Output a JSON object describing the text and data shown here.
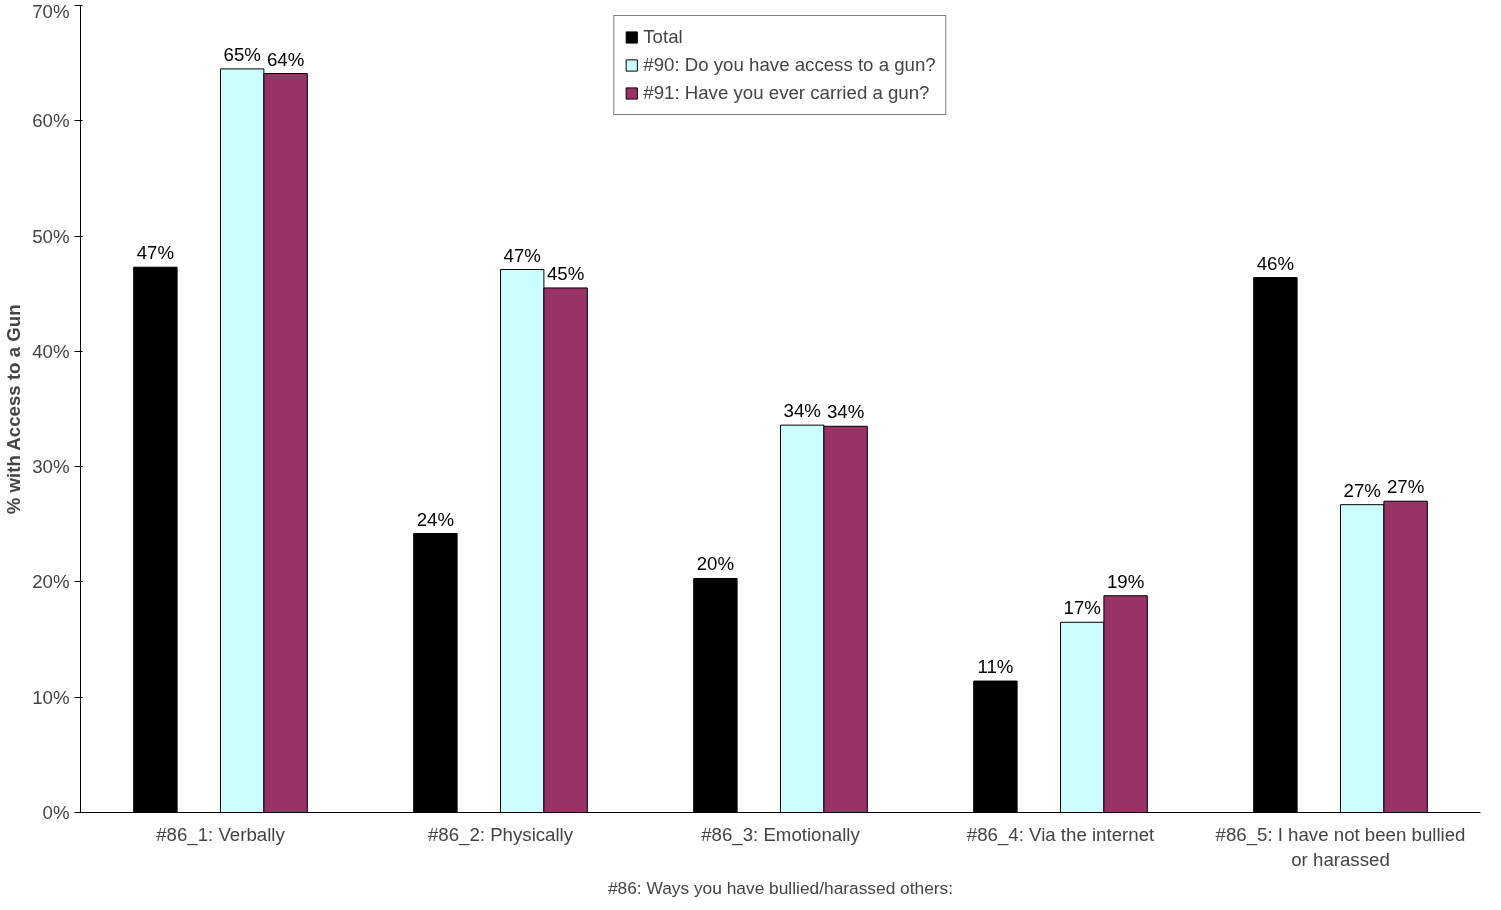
{
  "chart_data": {
    "type": "bar",
    "categories": [
      "#86_1: Verbally",
      "#86_2: Physically",
      "#86_3: Emotionally",
      "#86_4: Via the internet",
      "#86_5: I have not been bullied or harassed"
    ],
    "series": [
      {
        "name": "Total",
        "color": "#000000",
        "values": [
          47.3,
          24.2,
          20.3,
          11.4,
          46.4
        ],
        "value_labels": [
          "47%",
          "24%",
          "20%",
          "11%",
          "46%"
        ]
      },
      {
        "name": "#90: Do you have access to a gun?",
        "color": "#ccffff",
        "values": [
          64.5,
          47.1,
          33.6,
          16.5,
          26.7
        ],
        "value_labels": [
          "65%",
          "47%",
          "34%",
          "17%",
          "27%"
        ]
      },
      {
        "name": "#91: Have you ever carried a gun?",
        "color": "#993366",
        "values": [
          64.1,
          45.5,
          33.5,
          18.8,
          27.0
        ],
        "value_labels": [
          "64%",
          "45%",
          "34%",
          "19%",
          "27%"
        ]
      }
    ],
    "xlabel": "#86: Ways you have bullied/harassed others:",
    "ylabel": "% with Access to a Gun",
    "ylim": [
      0,
      70
    ],
    "yticks": [
      {
        "value": 0,
        "label": "0%"
      },
      {
        "value": 10,
        "label": "10%"
      },
      {
        "value": 20,
        "label": "20%"
      },
      {
        "value": 30,
        "label": "30%"
      },
      {
        "value": 40,
        "label": "40%"
      },
      {
        "value": 50,
        "label": "50%"
      },
      {
        "value": 60,
        "label": "60%"
      },
      {
        "value": 70,
        "label": "70%"
      }
    ],
    "grid": false,
    "legend": "top"
  }
}
